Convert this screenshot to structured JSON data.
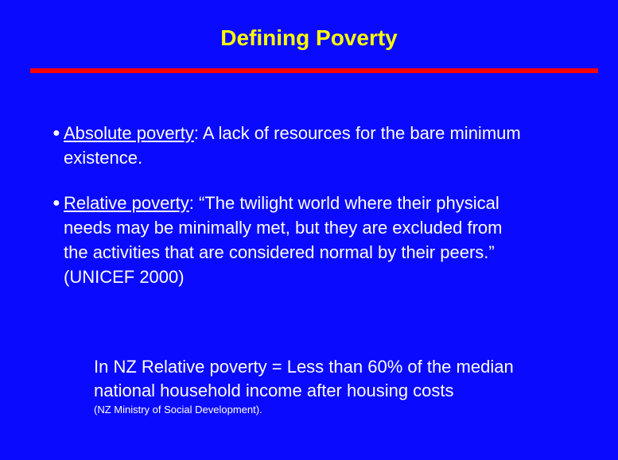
{
  "title": "Defining Poverty",
  "bullets": [
    {
      "term": "Absolute poverty",
      "lines": [
        ": A lack of resources for the bare minimum",
        "existence."
      ]
    },
    {
      "term": "Relative poverty",
      "lines": [
        ": “The twilight world where their physical",
        "needs may be minimally met, but they are excluded from",
        "the activities that are considered normal by their peers.”",
        "(UNICEF 2000)"
      ]
    }
  ],
  "note": {
    "lines": [
      "In NZ Relative poverty = Less than 60% of the median",
      "national household income after housing costs"
    ],
    "source": "(NZ Ministry of Social Development)."
  }
}
